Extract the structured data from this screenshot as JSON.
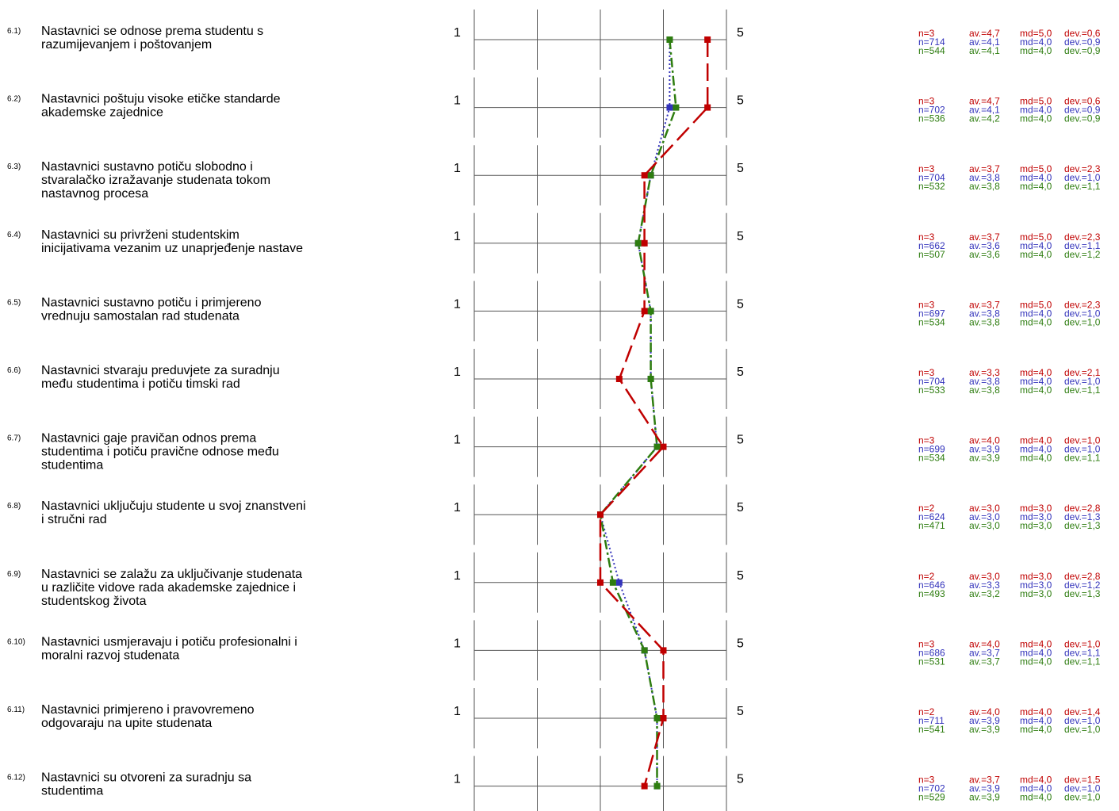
{
  "chart_data": {
    "type": "line",
    "scale": {
      "min_label": "1",
      "max_label": "5",
      "min": 1,
      "max": 5
    },
    "colors": {
      "series1": "#c00000",
      "series2": "#3333bb",
      "series3": "#2e7d10"
    },
    "questions": [
      {
        "num": "6.1)",
        "lines": [
          "Nastavnici se odnose prema studentu s",
          "razumijevanjem i poštovanjem"
        ]
      },
      {
        "num": "6.2)",
        "lines": [
          "Nastavnici poštuju visoke etičke standarde",
          "akademske zajednice"
        ]
      },
      {
        "num": "6.3)",
        "lines": [
          "Nastavnici sustavno potiču slobodno i",
          "stvaralačko izražavanje studenata tokom",
          "nastavnog procesa"
        ]
      },
      {
        "num": "6.4)",
        "lines": [
          "Nastavnici su privrženi studentskim",
          "inicijativama vezanim uz unaprjeđenje nastave"
        ]
      },
      {
        "num": "6.5)",
        "lines": [
          "Nastavnici sustavno potiču i primjereno",
          "vrednuju samostalan rad studenata"
        ]
      },
      {
        "num": "6.6)",
        "lines": [
          "Nastavnici stvaraju preduvjete za suradnju",
          "među studentima i potiču timski rad"
        ]
      },
      {
        "num": "6.7)",
        "lines": [
          "Nastavnici gaje pravičan odnos prema",
          "studentima i potiču pravične odnose među",
          "studentima"
        ]
      },
      {
        "num": "6.8)",
        "lines": [
          "Nastavnici uključuju studente u svoj znanstveni",
          "i stručni rad"
        ]
      },
      {
        "num": "6.9)",
        "lines": [
          "Nastavnici se zalažu za uključivanje studenata",
          "u različite vidove rada akademske zajednice i",
          "studentskog života"
        ]
      },
      {
        "num": "6.10)",
        "lines": [
          "Nastavnici usmjeravaju i potiču profesionalni i",
          "moralni razvoj studenata"
        ]
      },
      {
        "num": "6.11)",
        "lines": [
          "Nastavnici primjereno i pravovremeno",
          "odgovaraju na upite studenata"
        ]
      },
      {
        "num": "6.12)",
        "lines": [
          "Nastavnici su otvoreni za suradnju sa",
          "studentima"
        ]
      }
    ],
    "series": [
      {
        "values": [
          4.7,
          4.7,
          3.7,
          3.7,
          3.7,
          3.3,
          4.0,
          3.0,
          3.0,
          4.0,
          4.0,
          3.7
        ]
      },
      {
        "values": [
          4.1,
          4.1,
          3.8,
          3.6,
          3.8,
          3.8,
          3.9,
          3.0,
          3.3,
          3.7,
          3.9,
          3.9
        ]
      },
      {
        "values": [
          4.1,
          4.2,
          3.8,
          3.6,
          3.8,
          3.8,
          3.9,
          3.0,
          3.2,
          3.7,
          3.9,
          3.9
        ]
      }
    ],
    "stats": [
      [
        [
          "n=3",
          "av.=4,7",
          "md=5,0",
          "dev.=0,6"
        ],
        [
          "n=714",
          "av.=4,1",
          "md=4,0",
          "dev.=0,9"
        ],
        [
          "n=544",
          "av.=4,1",
          "md=4,0",
          "dev.=0,9"
        ]
      ],
      [
        [
          "n=3",
          "av.=4,7",
          "md=5,0",
          "dev.=0,6"
        ],
        [
          "n=702",
          "av.=4,1",
          "md=4,0",
          "dev.=0,9"
        ],
        [
          "n=536",
          "av.=4,2",
          "md=4,0",
          "dev.=0,9"
        ]
      ],
      [
        [
          "n=3",
          "av.=3,7",
          "md=5,0",
          "dev.=2,3"
        ],
        [
          "n=704",
          "av.=3,8",
          "md=4,0",
          "dev.=1,0"
        ],
        [
          "n=532",
          "av.=3,8",
          "md=4,0",
          "dev.=1,1"
        ]
      ],
      [
        [
          "n=3",
          "av.=3,7",
          "md=5,0",
          "dev.=2,3"
        ],
        [
          "n=662",
          "av.=3,6",
          "md=4,0",
          "dev.=1,1"
        ],
        [
          "n=507",
          "av.=3,6",
          "md=4,0",
          "dev.=1,2"
        ]
      ],
      [
        [
          "n=3",
          "av.=3,7",
          "md=5,0",
          "dev.=2,3"
        ],
        [
          "n=697",
          "av.=3,8",
          "md=4,0",
          "dev.=1,0"
        ],
        [
          "n=534",
          "av.=3,8",
          "md=4,0",
          "dev.=1,0"
        ]
      ],
      [
        [
          "n=3",
          "av.=3,3",
          "md=4,0",
          "dev.=2,1"
        ],
        [
          "n=704",
          "av.=3,8",
          "md=4,0",
          "dev.=1,0"
        ],
        [
          "n=533",
          "av.=3,8",
          "md=4,0",
          "dev.=1,1"
        ]
      ],
      [
        [
          "n=3",
          "av.=4,0",
          "md=4,0",
          "dev.=1,0"
        ],
        [
          "n=699",
          "av.=3,9",
          "md=4,0",
          "dev.=1,0"
        ],
        [
          "n=534",
          "av.=3,9",
          "md=4,0",
          "dev.=1,1"
        ]
      ],
      [
        [
          "n=2",
          "av.=3,0",
          "md=3,0",
          "dev.=2,8"
        ],
        [
          "n=624",
          "av.=3,0",
          "md=3,0",
          "dev.=1,3"
        ],
        [
          "n=471",
          "av.=3,0",
          "md=3,0",
          "dev.=1,3"
        ]
      ],
      [
        [
          "n=2",
          "av.=3,0",
          "md=3,0",
          "dev.=2,8"
        ],
        [
          "n=646",
          "av.=3,3",
          "md=3,0",
          "dev.=1,2"
        ],
        [
          "n=493",
          "av.=3,2",
          "md=3,0",
          "dev.=1,3"
        ]
      ],
      [
        [
          "n=3",
          "av.=4,0",
          "md=4,0",
          "dev.=1,0"
        ],
        [
          "n=686",
          "av.=3,7",
          "md=4,0",
          "dev.=1,1"
        ],
        [
          "n=531",
          "av.=3,7",
          "md=4,0",
          "dev.=1,1"
        ]
      ],
      [
        [
          "n=2",
          "av.=4,0",
          "md=4,0",
          "dev.=1,4"
        ],
        [
          "n=711",
          "av.=3,9",
          "md=4,0",
          "dev.=1,0"
        ],
        [
          "n=541",
          "av.=3,9",
          "md=4,0",
          "dev.=1,0"
        ]
      ],
      [
        [
          "n=3",
          "av.=3,7",
          "md=4,0",
          "dev.=1,5"
        ],
        [
          "n=702",
          "av.=3,9",
          "md=4,0",
          "dev.=1,0"
        ],
        [
          "n=529",
          "av.=3,9",
          "md=4,0",
          "dev.=1,0"
        ]
      ]
    ]
  }
}
